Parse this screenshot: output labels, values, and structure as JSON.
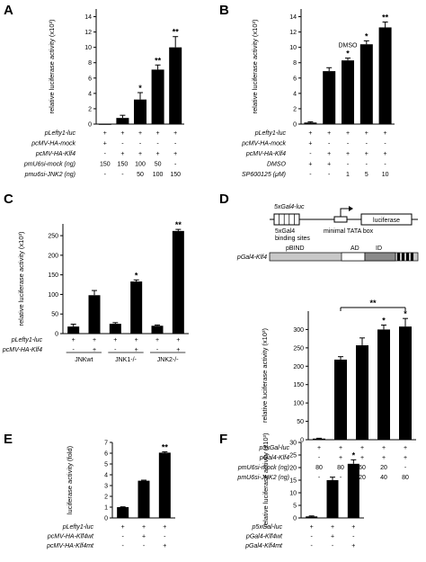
{
  "chart_data": [
    {
      "panel": "A",
      "type": "bar",
      "ylabel": "relative luciferase activity (x10³)",
      "ylim": [
        0,
        15
      ],
      "yticks": [
        0,
        2,
        4,
        6,
        8,
        10,
        12,
        14
      ],
      "values": [
        0,
        0.8,
        3.2,
        7.1,
        10.0
      ],
      "errors": [
        0,
        0.35,
        0.9,
        0.6,
        1.4
      ],
      "stars": [
        "",
        "",
        "*",
        "**",
        "**"
      ],
      "rows": [
        {
          "label": "pLefty1-luc",
          "cells": [
            "+",
            "+",
            "+",
            "+",
            "+"
          ]
        },
        {
          "label": "pcMV-HA-mock",
          "cells": [
            "+",
            "-",
            "-",
            "-",
            "-"
          ]
        },
        {
          "label": "pcMV-HA-Klf4",
          "cells": [
            "-",
            "+",
            "+",
            "+",
            "+"
          ]
        },
        {
          "label": "pmU6si-mock (ng)",
          "cells": [
            "150",
            "150",
            "100",
            "50",
            "-"
          ]
        },
        {
          "label": "pmu6si-JNK2 (ng)",
          "cells": [
            "-",
            "-",
            "50",
            "100",
            "150"
          ]
        }
      ]
    },
    {
      "panel": "B",
      "type": "bar",
      "ylabel": "relative luciferase activity (x10³)",
      "ylim": [
        0,
        15
      ],
      "yticks": [
        0,
        2,
        4,
        6,
        8,
        10,
        12,
        14
      ],
      "values": [
        0.2,
        6.9,
        8.3,
        10.4,
        12.6
      ],
      "errors": [
        0.1,
        0.45,
        0.3,
        0.45,
        0.7
      ],
      "stars": [
        "",
        "",
        "*",
        "*",
        "**"
      ],
      "bar_annotation": "DMSO",
      "rows": [
        {
          "label": "pLefty1-luc",
          "cells": [
            "+",
            "+",
            "+",
            "+",
            "+"
          ]
        },
        {
          "label": "pcMV-HA-mock",
          "cells": [
            "+",
            "-",
            "-",
            "-",
            "-"
          ]
        },
        {
          "label": "pcMV-HA-Klf4",
          "cells": [
            "-",
            "+",
            "+",
            "+",
            "+"
          ]
        },
        {
          "label": "DMSO",
          "italic": false,
          "cells": [
            "+",
            "+",
            "-",
            "-",
            "-"
          ]
        },
        {
          "label": "SP600125 (μM)",
          "italic": false,
          "cells": [
            "-",
            "-",
            "1",
            "5",
            "10"
          ]
        }
      ]
    },
    {
      "panel": "C",
      "type": "bar",
      "ylabel": "relative luciferase activity (x10³)",
      "ylim": [
        0,
        280
      ],
      "yticks": [
        0,
        50,
        100,
        150,
        200,
        250
      ],
      "values": [
        18,
        98,
        25,
        133,
        20,
        262
      ],
      "errors": [
        6,
        12,
        3,
        4,
        2,
        4
      ],
      "stars": [
        "",
        "",
        "",
        "*",
        "",
        "**"
      ],
      "groups": [
        "JNKwt",
        "JNK1-/-",
        "JNK2-/-"
      ],
      "rows": [
        {
          "label": "pLefty1-luc",
          "cells": [
            "+",
            "+",
            "+",
            "+",
            "+",
            "+"
          ]
        },
        {
          "label": "pcMV-HA-Klf4",
          "cells": [
            "-",
            "+",
            "-",
            "+",
            "-",
            "+"
          ]
        }
      ]
    },
    {
      "panel": "D",
      "type": "bar",
      "diagram": {
        "construct1": "5xGal4-luc",
        "box_labels": [
          "5xGal4",
          "binding sites",
          "minimal TATA box",
          "luciferase"
        ],
        "construct2": "pGal4-Klf4",
        "domains": [
          "pBIND",
          "AD",
          "ID"
        ]
      },
      "ylabel": "relative luciferase activity (x10³)",
      "ylim": [
        0,
        350
      ],
      "yticks": [
        0,
        50,
        100,
        150,
        200,
        250,
        300
      ],
      "values": [
        3,
        218,
        257,
        300,
        308
      ],
      "errors": [
        1,
        8,
        20,
        12,
        22
      ],
      "stars": [
        "",
        "",
        "",
        "*",
        "*"
      ],
      "bracket_star": "**",
      "rows": [
        {
          "label": "p5xGal-luc",
          "cells": [
            "+",
            "+",
            "+",
            "+",
            "+"
          ]
        },
        {
          "label": "pGal4-Klf4",
          "cells": [
            "-",
            "+",
            "+",
            "+",
            "+"
          ]
        },
        {
          "label": "pmU6si-mock (ng)",
          "cells": [
            "80",
            "80",
            "60",
            "20",
            "-"
          ]
        },
        {
          "label": "pmU6si-JNK2 (ng)",
          "cells": [
            "-",
            "-",
            "20",
            "40",
            "80"
          ]
        }
      ]
    },
    {
      "panel": "E",
      "type": "bar",
      "ylabel": "luciferase activity (fold)",
      "ylim": [
        0,
        7
      ],
      "yticks": [
        0,
        1,
        2,
        3,
        4,
        5,
        6,
        7
      ],
      "values": [
        1.0,
        3.45,
        6.05
      ],
      "errors": [
        0.03,
        0.05,
        0.08
      ],
      "stars": [
        "",
        "",
        "**"
      ],
      "rows": [
        {
          "label": "pLefty1-luc",
          "cells": [
            "+",
            "+",
            "+"
          ]
        },
        {
          "label": "pcMV-HA-Klf4wt",
          "cells": [
            "-",
            "+",
            "-"
          ]
        },
        {
          "label": "pcMV-HA-Klf4mt",
          "cells": [
            "-",
            "-",
            "+"
          ]
        }
      ]
    },
    {
      "panel": "F",
      "type": "bar",
      "ylabel": "relative luciferase activity (x10³)",
      "ylim": [
        0,
        30
      ],
      "yticks": [
        0,
        5,
        10,
        15,
        20,
        25,
        30
      ],
      "values": [
        0.6,
        15.0,
        21.5
      ],
      "errors": [
        0.2,
        1.2,
        1.6
      ],
      "stars": [
        "",
        "",
        "*"
      ],
      "rows": [
        {
          "label": "p5xGal-luc",
          "cells": [
            "+",
            "+",
            "+"
          ]
        },
        {
          "label": "pGal4-Klf4wt",
          "cells": [
            "-",
            "+",
            "-"
          ]
        },
        {
          "label": "pGal4-Klf4mt",
          "cells": [
            "-",
            "-",
            "+"
          ]
        }
      ]
    }
  ]
}
